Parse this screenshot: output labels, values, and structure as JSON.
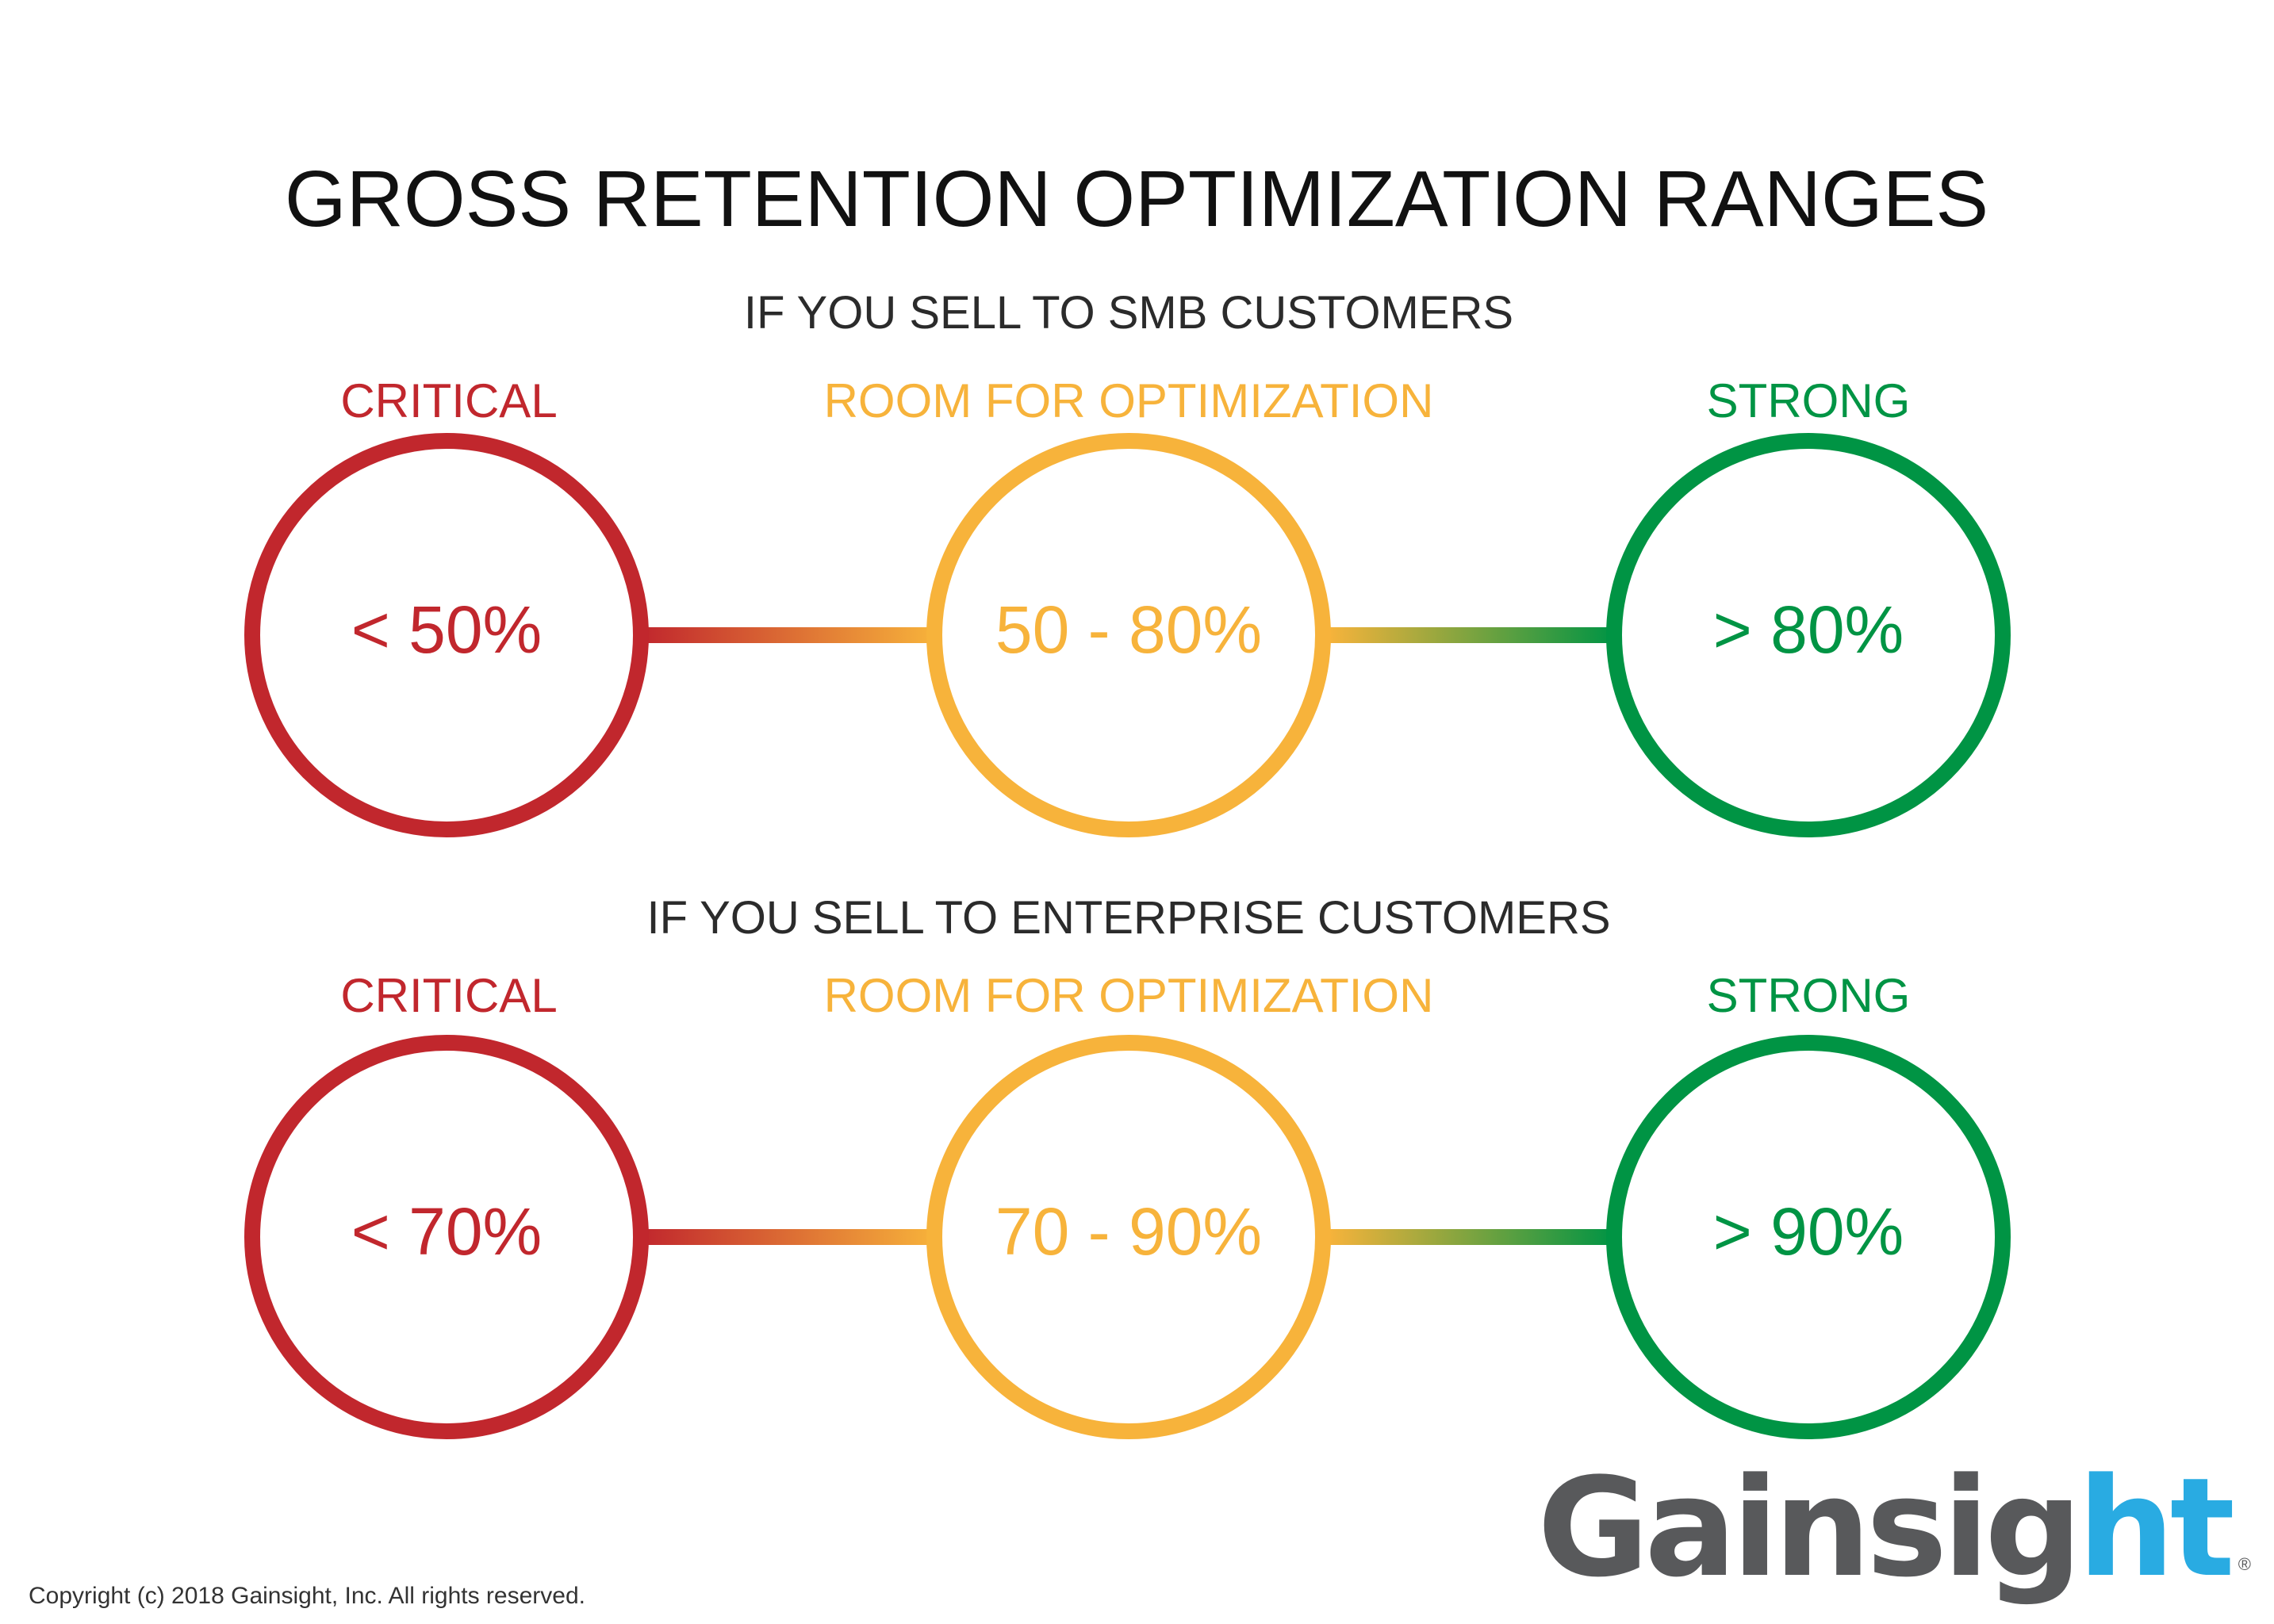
{
  "title": "GROSS RETENTION OPTIMIZATION RANGES",
  "colors": {
    "critical": "#c1272d",
    "optimization": "#f7b33b",
    "strong": "#009444",
    "logo_gray": "#58595b",
    "logo_blue": "#29abe2"
  },
  "sections": [
    {
      "heading": "IF YOU SELL TO SMB CUSTOMERS",
      "tiers": [
        {
          "label": "CRITICAL",
          "range": "< 50%"
        },
        {
          "label": "ROOM FOR OPTIMIZATION",
          "range": "50 - 80%"
        },
        {
          "label": "STRONG",
          "range": "> 80%"
        }
      ]
    },
    {
      "heading": "IF YOU SELL TO ENTERPRISE CUSTOMERS",
      "tiers": [
        {
          "label": "CRITICAL",
          "range": "< 70%"
        },
        {
          "label": "ROOM FOR OPTIMIZATION",
          "range": "70 - 90%"
        },
        {
          "label": "STRONG",
          "range": "> 90%"
        }
      ]
    }
  ],
  "logo": {
    "text_main": "Gainsig",
    "text_accent": "ht",
    "registered": "®"
  },
  "copyright": "Copyright (c) 2018 Gainsight, Inc. All rights reserved."
}
